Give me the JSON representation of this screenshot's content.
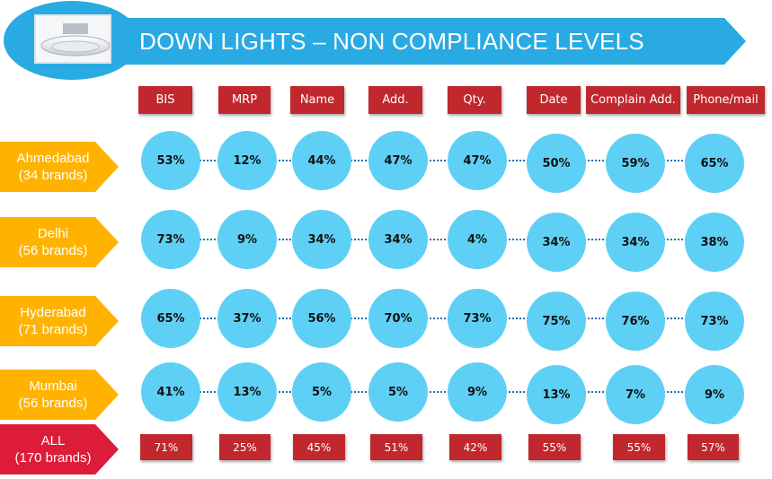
{
  "title": "DOWN LIGHTS – NON COMPLIANCE LEVELS",
  "colors": {
    "banner": "#29aae2",
    "header_red": "#c0282d",
    "row_label_orange": "#ffb300",
    "all_label_red": "#dd1c3a",
    "bubble": "#5fd0f5",
    "connector": "#1e6fb3"
  },
  "columns": [
    "BIS",
    "MRP",
    "Name",
    "Add.",
    "Qty.",
    "Date",
    "Complain Add.",
    "Phone/mail"
  ],
  "rows": [
    {
      "city": "Ahmedabad",
      "brands": "(34 brands)",
      "values": [
        "53%",
        "12%",
        "44%",
        "47%",
        "47%",
        "50%",
        "59%",
        "65%"
      ]
    },
    {
      "city": "Delhi",
      "brands": "(56 brands)",
      "values": [
        "73%",
        "9%",
        "34%",
        "34%",
        "4%",
        "34%",
        "34%",
        "38%"
      ]
    },
    {
      "city": "Hyderabad",
      "brands": "(71 brands)",
      "values": [
        "65%",
        "37%",
        "56%",
        "70%",
        "73%",
        "75%",
        "76%",
        "73%"
      ]
    },
    {
      "city": "Mumbai",
      "brands": "(56 brands)",
      "values": [
        "41%",
        "13%",
        "5%",
        "5%",
        "9%",
        "13%",
        "7%",
        "9%"
      ]
    }
  ],
  "total": {
    "city": "ALL",
    "brands": "(170 brands)",
    "values": [
      "71%",
      "25%",
      "45%",
      "51%",
      "42%",
      "55%",
      "55%",
      "57%"
    ]
  }
}
